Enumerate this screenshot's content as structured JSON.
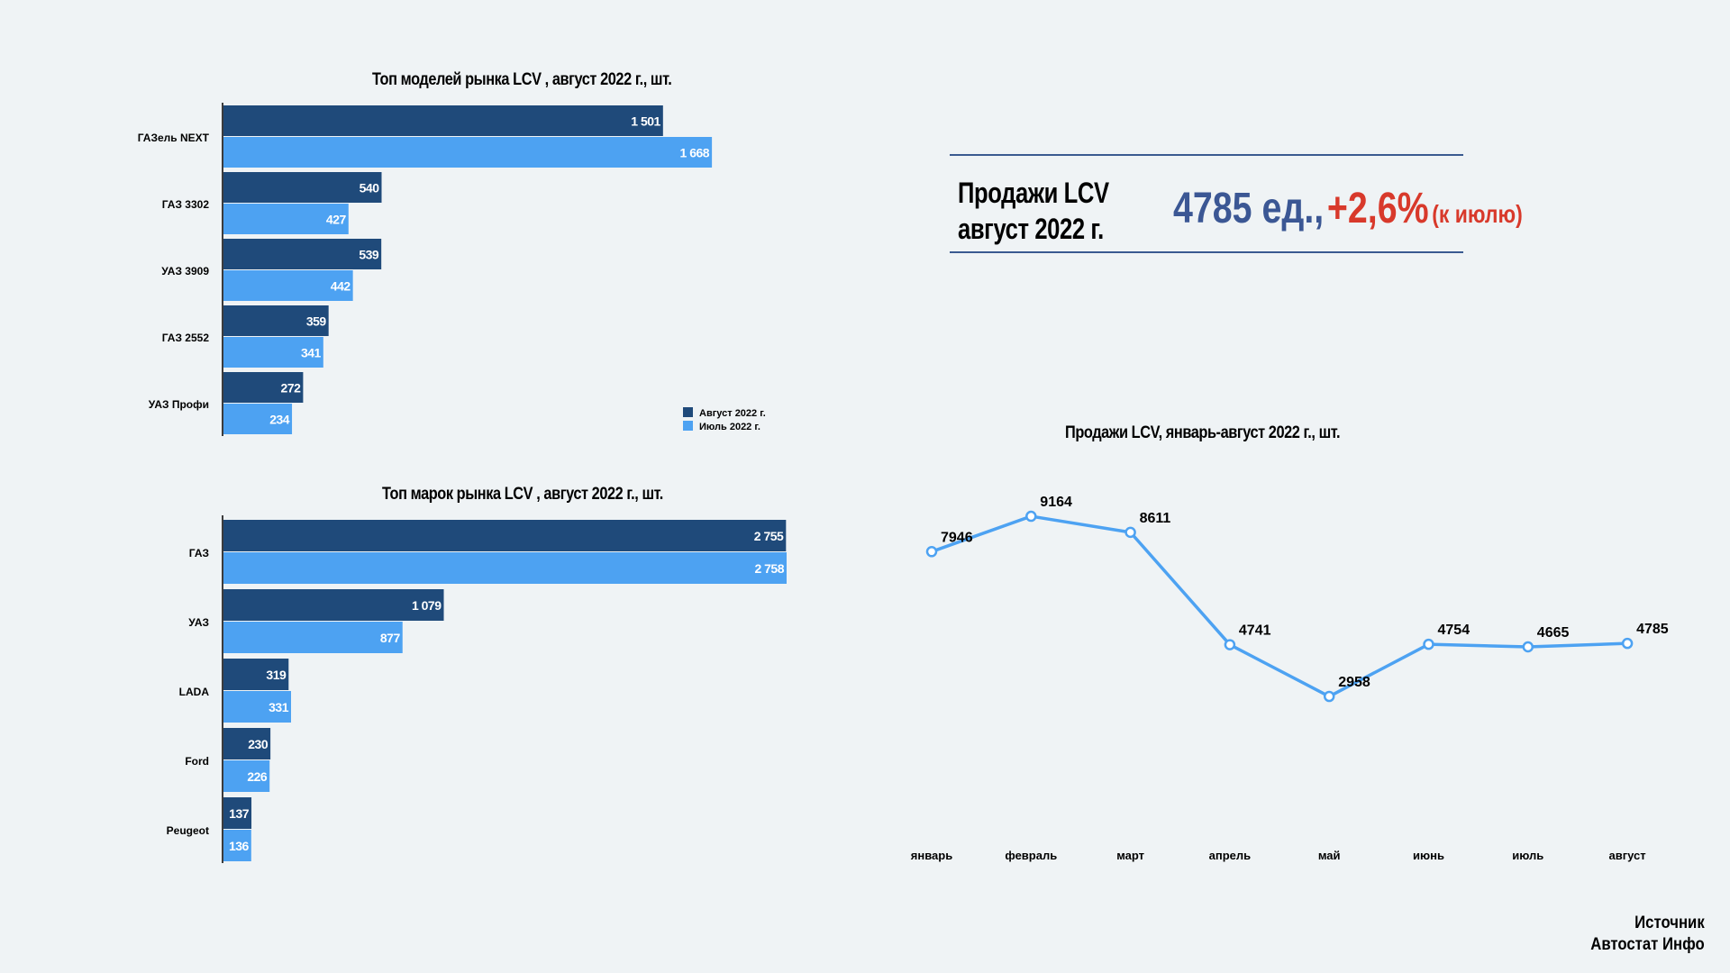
{
  "summary": {
    "label_line1": "Продажи LCV",
    "label_line2": "август 2022 г.",
    "units_value": "4785 ед.,",
    "change_value": "+2,6%",
    "change_note": "(к июлю)"
  },
  "source": {
    "line1": "Источник",
    "line2": "Автостат Инфо"
  },
  "colors": {
    "august": "#1f4a7a",
    "july": "#4da2f2",
    "line": "#4da2f2",
    "accent_blue": "#3b5794",
    "accent_red": "#d8392b"
  },
  "chart_data": [
    {
      "type": "bar",
      "orientation": "horizontal",
      "title": "Топ моделей рынка LCV , август 2022 г., шт.",
      "categories": [
        "ГАЗель NEXT",
        "ГАЗ 3302",
        "УАЗ 3909",
        "ГАЗ 2552",
        "УАЗ Профи"
      ],
      "series": [
        {
          "name": "Август 2022 г.",
          "values": [
            1501,
            540,
            539,
            359,
            272
          ],
          "labels": [
            "1 501",
            "540",
            "539",
            "359",
            "272"
          ]
        },
        {
          "name": "Июль 2022 г.",
          "values": [
            1668,
            427,
            442,
            341,
            234
          ],
          "labels": [
            "1 668",
            "427",
            "442",
            "341",
            "234"
          ]
        }
      ],
      "xlim": [
        0,
        1800
      ],
      "legend": "bottom-right"
    },
    {
      "type": "bar",
      "orientation": "horizontal",
      "title": "Топ марок рынка LCV , август 2022 г., шт.",
      "categories": [
        "ГАЗ",
        "УАЗ",
        "LADA",
        "Ford",
        "Peugeot"
      ],
      "series": [
        {
          "name": "Август 2022 г.",
          "values": [
            2755,
            1079,
            319,
            230,
            137
          ],
          "labels": [
            "2 755",
            "1 079",
            "319",
            "230",
            "137"
          ]
        },
        {
          "name": "Июль 2022 г.",
          "values": [
            2758,
            877,
            331,
            226,
            136
          ],
          "labels": [
            "2 758",
            "877",
            "331",
            "226",
            "136"
          ]
        }
      ],
      "xlim": [
        0,
        2758
      ]
    },
    {
      "type": "line",
      "title": "Продажи LCV, январь-август 2022 г., шт.",
      "categories": [
        "январь",
        "февраль",
        "март",
        "апрель",
        "май",
        "июнь",
        "июль",
        "август"
      ],
      "values": [
        7946,
        9164,
        8611,
        4741,
        2958,
        4754,
        4665,
        4785
      ],
      "ylim": [
        1500,
        10500
      ]
    }
  ]
}
